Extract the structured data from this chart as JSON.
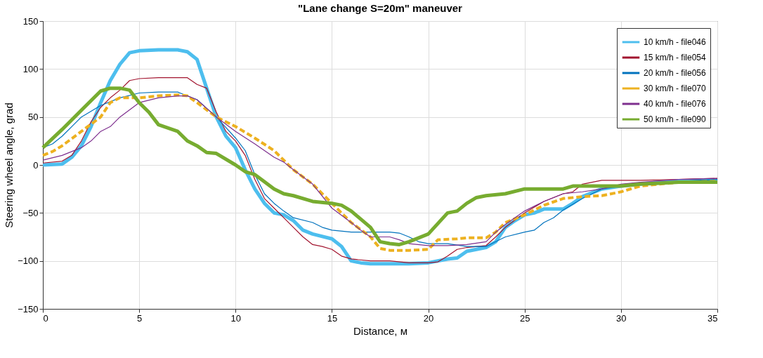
{
  "chart_data": {
    "type": "line",
    "title": "\"Lane change S=20m\" maneuver",
    "xlabel": "Distance, м",
    "ylabel": "Steering wheel angle, grad",
    "xlim": [
      0,
      35
    ],
    "xticks": [
      0,
      5,
      10,
      15,
      20,
      25,
      30,
      35
    ],
    "ylim": [
      -150,
      150
    ],
    "yticks": [
      -150,
      -100,
      -50,
      0,
      50,
      100,
      150
    ],
    "grid": true,
    "legend": "top right",
    "marker": "none",
    "series": [
      {
        "name": "10 km/h - file046",
        "color": "#4dbeee",
        "line_style": "solid",
        "x": [
          0,
          1,
          1.5,
          2,
          2.5,
          3,
          3.5,
          4,
          4.5,
          5,
          6,
          7,
          7.5,
          8,
          8.5,
          9,
          9.5,
          10,
          10.5,
          11,
          11.5,
          12,
          12.5,
          13,
          13.5,
          14,
          15,
          15.5,
          16,
          16.5,
          17,
          18,
          19,
          20,
          21,
          21.5,
          22,
          23,
          23.5,
          24,
          24.5,
          25,
          25.5,
          26,
          27,
          27.5,
          28,
          29,
          30,
          31,
          32,
          33,
          34,
          35
        ],
        "values": [
          0,
          1,
          8,
          20,
          40,
          65,
          88,
          105,
          117,
          119,
          120,
          120,
          118,
          110,
          80,
          50,
          30,
          18,
          -5,
          -25,
          -40,
          -50,
          -52,
          -58,
          -68,
          -72,
          -77,
          -85,
          -100,
          -102,
          -103,
          -103,
          -103,
          -102,
          -98,
          -97,
          -90,
          -86,
          -80,
          -65,
          -58,
          -52,
          -50,
          -46,
          -46,
          -40,
          -33,
          -25,
          -22,
          -20,
          -18,
          -17,
          -16,
          -17
        ]
      },
      {
        "name": "15 km/h - file054",
        "color": "#a2142f",
        "line_style": "solid",
        "x": [
          0,
          1,
          1.5,
          2,
          2.5,
          3,
          3.5,
          4,
          4.5,
          5,
          6,
          7,
          7.5,
          8,
          8.5,
          9,
          9.5,
          10,
          10.5,
          11,
          11.5,
          12,
          12.5,
          13,
          13.5,
          14,
          14.5,
          15,
          15.5,
          16,
          17,
          18,
          19,
          20,
          20.5,
          21,
          21.5,
          22,
          23,
          23.5,
          24,
          25,
          26,
          27,
          27.5,
          28,
          29,
          31,
          33,
          35
        ],
        "values": [
          2,
          4,
          10,
          25,
          45,
          60,
          70,
          78,
          88,
          90,
          91,
          91,
          91,
          84,
          80,
          55,
          35,
          25,
          10,
          -15,
          -35,
          -45,
          -55,
          -65,
          -75,
          -83,
          -85,
          -88,
          -95,
          -98,
          -100,
          -100,
          -102,
          -102,
          -101,
          -95,
          -88,
          -86,
          -84,
          -75,
          -65,
          -50,
          -38,
          -30,
          -28,
          -20,
          -16,
          -16,
          -15,
          -14
        ]
      },
      {
        "name": "20 km/h - file056",
        "color": "#0072bd",
        "line_style": "solid",
        "x": [
          0,
          0.5,
          1,
          1.5,
          2,
          3,
          4,
          5,
          6,
          7,
          8,
          9,
          10,
          10.5,
          11,
          11.5,
          12,
          12.5,
          13,
          14,
          14.5,
          15,
          16,
          17,
          18,
          18.5,
          19,
          19.5,
          20,
          21,
          22,
          23,
          23.5,
          24,
          25,
          25.5,
          26,
          26.5,
          27,
          28,
          28.5,
          29,
          30,
          31,
          32,
          33,
          35
        ],
        "values": [
          18,
          22,
          30,
          40,
          50,
          62,
          70,
          75,
          76,
          76,
          68,
          50,
          28,
          15,
          -10,
          -30,
          -40,
          -48,
          -55,
          -60,
          -65,
          -68,
          -70,
          -70,
          -70,
          -71,
          -75,
          -80,
          -82,
          -82,
          -85,
          -85,
          -80,
          -75,
          -70,
          -68,
          -60,
          -55,
          -47,
          -35,
          -30,
          -25,
          -22,
          -20,
          -18,
          -17,
          -15
        ]
      },
      {
        "name": "30 km/h - file070",
        "color": "#edb120",
        "line_style": "dashed",
        "x": [
          0,
          0.5,
          1,
          2,
          3,
          3.5,
          4,
          5,
          6,
          7,
          7.5,
          8,
          9,
          10,
          11,
          12,
          12.5,
          13,
          14,
          15,
          16,
          17,
          17.5,
          18,
          19,
          20,
          20.5,
          21.5,
          22,
          23,
          23.5,
          24,
          25,
          26,
          27,
          28,
          29,
          30,
          31,
          32,
          33,
          35
        ],
        "values": [
          10,
          14,
          20,
          35,
          50,
          65,
          70,
          70,
          72,
          73,
          72,
          65,
          50,
          40,
          28,
          15,
          5,
          -5,
          -20,
          -40,
          -60,
          -75,
          -87,
          -89,
          -89,
          -88,
          -78,
          -77,
          -76,
          -76,
          -70,
          -60,
          -52,
          -42,
          -35,
          -33,
          -32,
          -28,
          -22,
          -20,
          -18,
          -17
        ]
      },
      {
        "name": "40 km/h - file076",
        "color": "#7e2f8e",
        "line_style": "solid",
        "x": [
          0,
          1,
          2,
          2.5,
          3,
          3.5,
          4,
          5,
          6,
          7,
          7.5,
          8,
          9,
          10,
          11,
          12,
          12.5,
          13,
          14,
          15,
          16,
          16.5,
          17,
          18,
          18.5,
          19,
          20,
          21,
          22,
          23,
          23.5,
          24,
          25,
          26,
          27,
          28,
          29,
          30,
          31,
          33,
          35
        ],
        "values": [
          5,
          10,
          18,
          25,
          35,
          40,
          50,
          65,
          70,
          72,
          72,
          68,
          50,
          35,
          22,
          8,
          3,
          -5,
          -20,
          -45,
          -60,
          -68,
          -75,
          -75,
          -78,
          -82,
          -84,
          -84,
          -83,
          -80,
          -70,
          -62,
          -48,
          -38,
          -30,
          -28,
          -25,
          -20,
          -18,
          -15,
          -14
        ]
      },
      {
        "name": "50 km/h - file090",
        "color": "#77ac30",
        "line_style": "solid",
        "x": [
          0,
          1,
          2,
          3,
          3.5,
          4,
          4.5,
          5,
          5.5,
          6,
          7,
          7.5,
          8,
          8.5,
          9,
          10,
          10.5,
          11,
          12,
          12.5,
          13,
          14,
          15,
          15.5,
          16,
          17,
          17.5,
          18,
          18.5,
          19,
          20,
          21,
          21.5,
          22,
          22.5,
          23,
          24,
          25,
          26,
          27,
          27.5,
          28,
          30,
          31,
          32,
          33,
          35
        ],
        "values": [
          18,
          37,
          57,
          77,
          80,
          80,
          78,
          65,
          55,
          42,
          35,
          25,
          20,
          13,
          12,
          0,
          -7,
          -10,
          -25,
          -30,
          -32,
          -38,
          -40,
          -42,
          -48,
          -65,
          -80,
          -82,
          -83,
          -80,
          -72,
          -50,
          -48,
          -40,
          -34,
          -32,
          -30,
          -25,
          -25,
          -25,
          -22,
          -22,
          -22,
          -20,
          -19,
          -18,
          -18
        ]
      }
    ]
  }
}
